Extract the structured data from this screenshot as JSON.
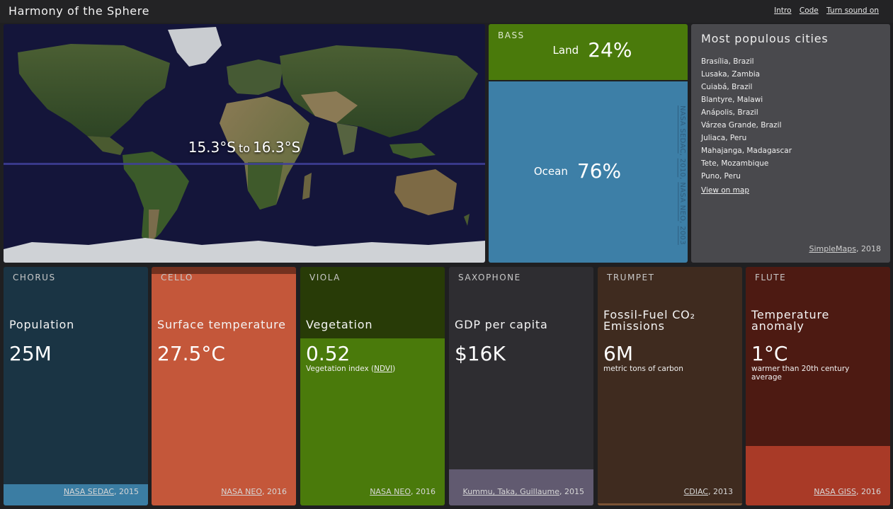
{
  "header": {
    "title": "Harmony of the Sphere",
    "links": [
      "Intro",
      "Code",
      "Turn sound on"
    ]
  },
  "map": {
    "lat_from": "15.3°S",
    "lat_to_word": "to",
    "lat_to": "16.3°S"
  },
  "bass": {
    "instrument": "BASS",
    "land_label": "Land",
    "land_pct": "24%",
    "land_fraction": 0.24,
    "ocean_label": "Ocean",
    "ocean_pct": "76%",
    "ocean_fraction": 0.76,
    "credit_src": "NASA SEDAC",
    "credit_year": "2010",
    "credit_src2": "NASA NEO",
    "credit_year2": "2003",
    "colors": {
      "land": "#4a7a0b",
      "ocean": "#3d7fa7"
    }
  },
  "cities": {
    "title": "Most populous cities",
    "items": [
      "Brasília, Brazil",
      "Lusaka, Zambia",
      "Cuiabá, Brazil",
      "Blantyre, Malawi",
      "Anápolis, Brazil",
      "Várzea Grande, Brazil",
      "Juliaca, Peru",
      "Mahajanga, Madagascar",
      "Tete, Mozambique",
      "Puno, Peru"
    ],
    "view_map": "View on map",
    "credit_src": "SimpleMaps",
    "credit_year": "2018"
  },
  "panels": [
    {
      "instrument": "CHORUS",
      "title": "Population",
      "value": "25M",
      "sub": "",
      "sub_link": "",
      "credit_src": "NASA SEDAC",
      "credit_year": "2015",
      "level": 0.09,
      "colors": {
        "bg": "#1a3444",
        "fill": "#3b7da3"
      }
    },
    {
      "instrument": "CELLO",
      "title": "Surface temperature",
      "value": "27.5°C",
      "sub": "",
      "sub_link": "",
      "credit_src": "NASA NEO",
      "credit_year": "2016",
      "level": 0.97,
      "colors": {
        "bg": "#73311f",
        "fill": "#c4573a"
      }
    },
    {
      "instrument": "VIOLA",
      "title": "Vegetation",
      "value": "0.52",
      "sub": "Vegetation index (",
      "sub_link": "NDVI",
      "sub_after": ")",
      "credit_src": "NASA NEO",
      "credit_year": "2016",
      "level": 0.7,
      "colors": {
        "bg": "#283b07",
        "fill": "#4a7a0b"
      }
    },
    {
      "instrument": "SAXOPHONE",
      "title": "GDP per capita",
      "value": "$16K",
      "sub": "",
      "sub_link": "",
      "credit_src": "Kummu, Taka, Guillaume",
      "credit_year": "2015",
      "level": 0.15,
      "colors": {
        "bg": "#2e2d31",
        "fill": "#615a70"
      }
    },
    {
      "instrument": "TRUMPET",
      "title": "Fossil-Fuel CO₂ Emissions",
      "value": "6M",
      "sub": "metric tons of carbon",
      "sub_link": "",
      "credit_src": "CDIAC",
      "credit_year": "2013",
      "level": 0.01,
      "colors": {
        "bg": "#3f2b1f",
        "fill": "#7b5335"
      }
    },
    {
      "instrument": "FLUTE",
      "title": "Temperature anomaly",
      "value": "1°C",
      "sub": "warmer than 20th century average",
      "sub_link": "",
      "credit_src": "NASA GISS",
      "credit_year": "2016",
      "level": 0.25,
      "colors": {
        "bg": "#4d1a12",
        "fill": "#a93a27"
      }
    }
  ]
}
